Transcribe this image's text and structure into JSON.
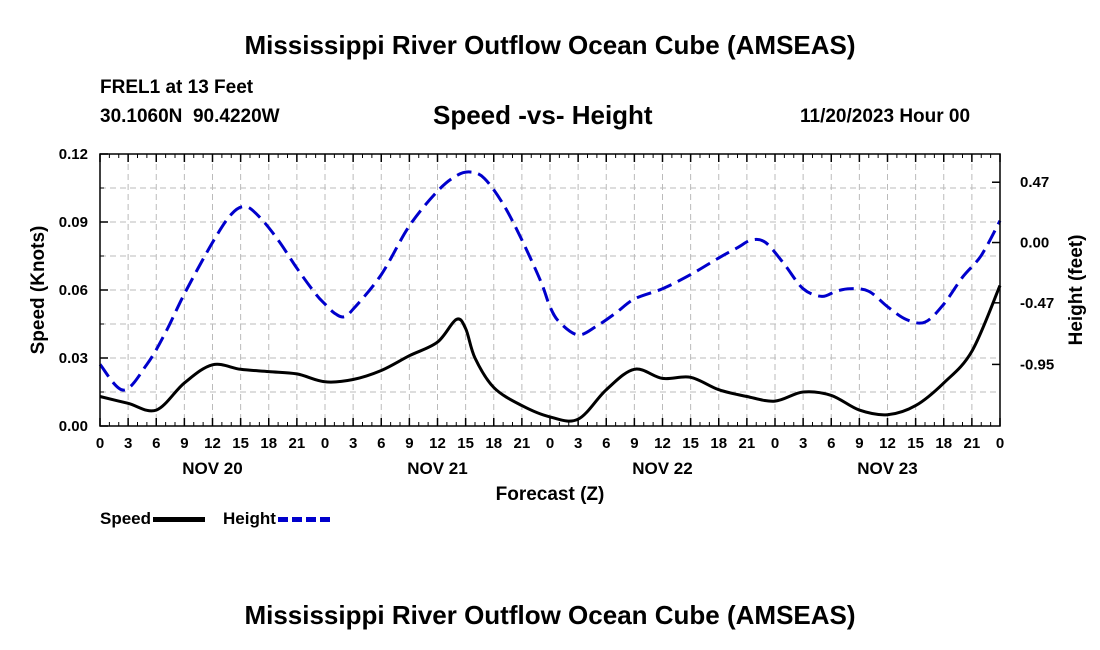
{
  "page": {
    "title": "Mississippi River Outflow Ocean Cube (AMSEAS)",
    "station": "FREL1 at 13 Feet",
    "coords": "30.1060N  90.4220W",
    "subtitle": "Speed -vs- Height",
    "datetime": "11/20/2023 Hour 00",
    "footer_title": "Mississippi River Outflow Ocean Cube (AMSEAS)"
  },
  "colors": {
    "speed": "#000000",
    "height": "#0000cc",
    "grid": "#bbbbbb"
  },
  "chart_data": {
    "type": "line",
    "xlabel": "Forecast (Z)",
    "ylabel_left": "Speed (Knots)",
    "ylabel_right": "Height (feet)",
    "x_range": [
      0,
      96
    ],
    "ylim_left": [
      0,
      0.12
    ],
    "ylim_right": [
      -1.43,
      0.69
    ],
    "yticks_left": [
      0,
      0.03,
      0.06,
      0.09,
      0.12
    ],
    "yticks_left_labels": [
      "0.00",
      "0.03",
      "0.06",
      "0.09",
      "0.12"
    ],
    "yticks_right": [
      0.47,
      0.0,
      -0.47,
      -0.95
    ],
    "yticks_right_labels": [
      "0.47",
      "0.00",
      "-0.47",
      "-0.95"
    ],
    "xticks": [
      0,
      3,
      6,
      9,
      12,
      15,
      18,
      21,
      24,
      27,
      30,
      33,
      36,
      39,
      42,
      45,
      48,
      51,
      54,
      57,
      60,
      63,
      66,
      69,
      72,
      75,
      78,
      81,
      84,
      87,
      90,
      93,
      96
    ],
    "xtick_labels": [
      "0",
      "3",
      "6",
      "9",
      "12",
      "15",
      "18",
      "21",
      "0",
      "3",
      "6",
      "9",
      "12",
      "15",
      "18",
      "21",
      "0",
      "3",
      "6",
      "9",
      "12",
      "15",
      "18",
      "21",
      "0",
      "3",
      "6",
      "9",
      "12",
      "15",
      "18",
      "21",
      "0"
    ],
    "day_labels": [
      {
        "x": 12,
        "label": "NOV 20"
      },
      {
        "x": 36,
        "label": "NOV 21"
      },
      {
        "x": 60,
        "label": "NOV 22"
      },
      {
        "x": 84,
        "label": "NOV 23"
      }
    ],
    "grid": true,
    "legend": [
      {
        "name": "Speed",
        "style": "solid"
      },
      {
        "name": "Height",
        "style": "dashed"
      }
    ],
    "series": [
      {
        "name": "Speed",
        "axis": "left",
        "x": [
          0,
          3,
          6,
          9,
          12,
          15,
          18,
          21,
          24,
          27,
          30,
          33,
          36,
          38,
          39,
          40,
          42,
          45,
          48,
          51,
          54,
          57,
          60,
          63,
          66,
          69,
          72,
          75,
          78,
          81,
          84,
          87,
          90,
          93,
          96
        ],
        "values": [
          0.013,
          0.01,
          0.007,
          0.019,
          0.027,
          0.025,
          0.024,
          0.023,
          0.0195,
          0.0205,
          0.0245,
          0.031,
          0.037,
          0.047,
          0.043,
          0.03,
          0.017,
          0.009,
          0.004,
          0.003,
          0.016,
          0.025,
          0.021,
          0.0215,
          0.016,
          0.013,
          0.011,
          0.015,
          0.0135,
          0.007,
          0.005,
          0.009,
          0.019,
          0.033,
          0.062
        ]
      },
      {
        "name": "Height",
        "axis": "right",
        "x": [
          0,
          2.5,
          5,
          7,
          9,
          12,
          14,
          15.5,
          17,
          19,
          21,
          23,
          24,
          25,
          26,
          27,
          30,
          33,
          36,
          38,
          39.5,
          41,
          43,
          45,
          47,
          48,
          49,
          51,
          53,
          55,
          57,
          60,
          63,
          66,
          68,
          69.5,
          71,
          73,
          75,
          77,
          78.5,
          80,
          82,
          84,
          86,
          88,
          90,
          92,
          94,
          96
        ],
        "values": [
          -0.95,
          -1.15,
          -0.95,
          -0.7,
          -0.4,
          0.0,
          0.22,
          0.28,
          0.2,
          0.02,
          -0.2,
          -0.4,
          -0.48,
          -0.55,
          -0.58,
          -0.52,
          -0.25,
          0.13,
          0.4,
          0.52,
          0.55,
          0.5,
          0.3,
          0.02,
          -0.3,
          -0.5,
          -0.62,
          -0.72,
          -0.65,
          -0.55,
          -0.44,
          -0.36,
          -0.25,
          -0.12,
          -0.04,
          0.02,
          0.0,
          -0.17,
          -0.36,
          -0.42,
          -0.38,
          -0.36,
          -0.38,
          -0.5,
          -0.6,
          -0.62,
          -0.48,
          -0.27,
          -0.1,
          0.17
        ]
      }
    ]
  }
}
